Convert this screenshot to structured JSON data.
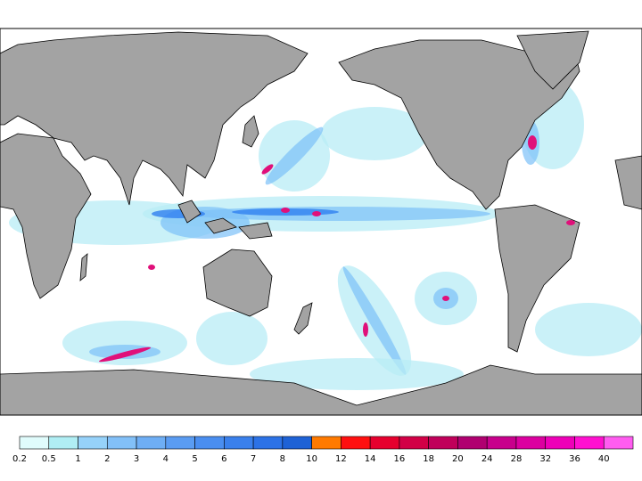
{
  "colorbar": {
    "labels": [
      0.2,
      0.5,
      1,
      2,
      3,
      4,
      5,
      6,
      7,
      8,
      10,
      12,
      14,
      16,
      18,
      20,
      24,
      28,
      32,
      36,
      40
    ],
    "colors": [
      "#e0fcfc",
      "#b0eef4",
      "#96d2fa",
      "#82c0f8",
      "#6eaef5",
      "#5a9cf2",
      "#4a8ef0",
      "#3a80ec",
      "#2c72e6",
      "#1e62d6",
      "#ff7a00",
      "#ff1010",
      "#e6002e",
      "#d20046",
      "#c0005a",
      "#b00070",
      "#c8008c",
      "#dc00a0",
      "#ee00b8",
      "#ff10d0",
      "#ff5cf0"
    ]
  }
}
